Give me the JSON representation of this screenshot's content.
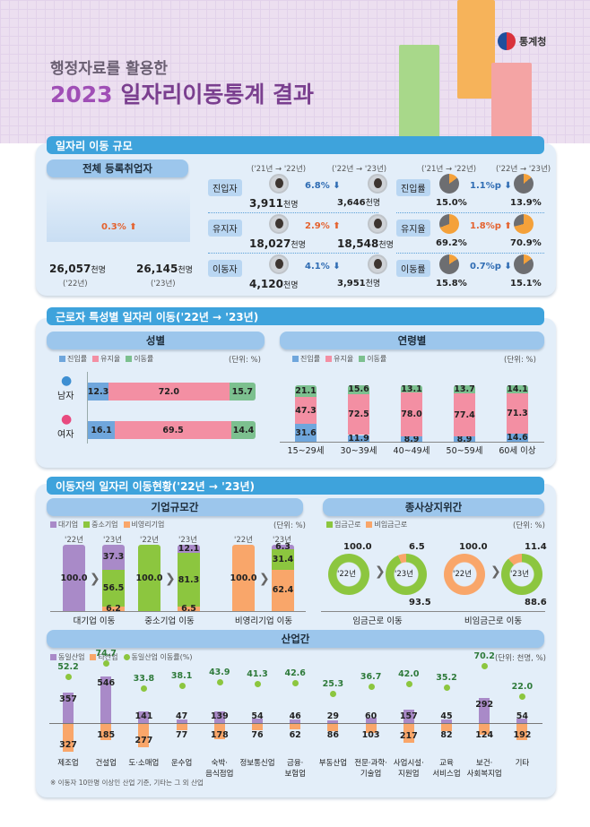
{
  "header": {
    "subtitle": "행정자료를 활용한",
    "year": "2023",
    "title": "일자리이동통계 결과",
    "org": "통계청"
  },
  "s1": {
    "title": "일자리 이동 규모",
    "pill": "전체 등록취업자",
    "total": {
      "v22": "26,057",
      "v23": "26,145",
      "unit": "천명",
      "y22": "('22년)",
      "y23": "('23년)",
      "change": "0.3%",
      "dir": "up"
    },
    "period1": "('21년 → '22년)",
    "period2": "('22년 → '23년)",
    "counts": [
      {
        "label": "진입자",
        "a": "3,911",
        "b": "3,646",
        "unit": "천명",
        "change": "6.8%",
        "dir": "down"
      },
      {
        "label": "유지자",
        "a": "18,027",
        "b": "18,548",
        "unit": "천명",
        "change": "2.9%",
        "dir": "up"
      },
      {
        "label": "이동자",
        "a": "4,120",
        "b": "3,951",
        "unit": "천명",
        "change": "4.1%",
        "dir": "down"
      }
    ],
    "rates": [
      {
        "label": "진입률",
        "a": 15.0,
        "b": 13.9,
        "change": "1.1%p",
        "dir": "down"
      },
      {
        "label": "유지율",
        "a": 69.2,
        "b": 70.9,
        "change": "1.8%p",
        "dir": "up"
      },
      {
        "label": "이동률",
        "a": 15.8,
        "b": 15.1,
        "change": "0.7%p",
        "dir": "down"
      }
    ],
    "colors": {
      "pie_fill": "#f4a13a",
      "pie_rest": "#6d6e71"
    }
  },
  "s2": {
    "title": "근로자 특성별 일자리 이동('22년 → '23년)",
    "unit": "(단위: %)",
    "legend": [
      "진입률",
      "유지율",
      "이동률"
    ],
    "colors": [
      "#6fa6dc",
      "#f38fa3",
      "#7cc08f"
    ]
  },
  "s3": {
    "title": "이동자의 일자리 이동현황('22년 → '23년)",
    "unit": "(단위: %)",
    "unit2": "(단위: 천명, %)",
    "legend_size": [
      "대기업",
      "중소기업",
      "비영리기업"
    ],
    "size_colors": [
      "#a98ac8",
      "#8cc63f",
      "#f9a66a"
    ],
    "legend_status": [
      "임금근로",
      "비임금근로"
    ],
    "status_colors": [
      "#8cc63f",
      "#f9a66a"
    ],
    "legend_ind": [
      "동일산업",
      "타산업",
      "동일산업 이동률(%)"
    ],
    "ind_colors": [
      "#a98ac8",
      "#f9a66a",
      "#8cc63f"
    ],
    "y22": "'22년",
    "y23": "'23년",
    "footnote": "※ 이동자 10만명 이상인 산업 기준, 기타는 그 외 산업"
  },
  "chart_data": [
    {
      "type": "bar",
      "title": "성별",
      "orientation": "horizontal",
      "stacked": true,
      "categories": [
        "남자",
        "여자"
      ],
      "series": [
        {
          "name": "진입률",
          "values": [
            12.3,
            16.1
          ]
        },
        {
          "name": "유지율",
          "values": [
            72.0,
            69.5
          ]
        },
        {
          "name": "이동률",
          "values": [
            15.7,
            14.4
          ]
        }
      ]
    },
    {
      "type": "bar",
      "title": "연령별",
      "stacked": true,
      "categories": [
        "15~29세",
        "30~39세",
        "40~49세",
        "50~59세",
        "60세 이상"
      ],
      "series": [
        {
          "name": "진입률",
          "values": [
            31.6,
            11.9,
            8.9,
            8.9,
            14.6
          ]
        },
        {
          "name": "유지율",
          "values": [
            47.3,
            72.5,
            78.0,
            77.4,
            71.3
          ]
        },
        {
          "name": "이동률",
          "values": [
            21.1,
            15.6,
            13.1,
            13.7,
            14.1
          ]
        }
      ]
    },
    {
      "type": "bar",
      "title": "기업규모간",
      "stacked": true,
      "categories": [
        "대기업 이동",
        "중소기업 이동",
        "비영리기업 이동"
      ],
      "from": [
        "대기업",
        "중소기업",
        "비영리기업"
      ],
      "series": [
        {
          "name": "대기업",
          "values": [
            37.3,
            12.1,
            6.3
          ]
        },
        {
          "name": "중소기업",
          "values": [
            56.5,
            81.3,
            31.4
          ]
        },
        {
          "name": "비영리기업",
          "values": [
            6.2,
            6.5,
            62.4
          ]
        }
      ],
      "base": [
        100.0,
        100.0,
        100.0
      ]
    },
    {
      "type": "pie",
      "title": "종사상지위간",
      "categories": [
        "임금근로 이동",
        "비임금근로 이동"
      ],
      "from": [
        "임금근로",
        "비임금근로"
      ],
      "base": [
        100.0,
        100.0
      ],
      "series": [
        {
          "name": "임금근로",
          "values": [
            93.5,
            88.6
          ]
        },
        {
          "name": "비임금근로",
          "values": [
            6.5,
            11.4
          ]
        }
      ]
    },
    {
      "type": "bar",
      "title": "산업간",
      "categories": [
        "제조업",
        "건설업",
        "도·소매업",
        "운수업",
        "숙박·\n음식점업",
        "정보통신업",
        "금융·\n보험업",
        "부동산업",
        "전문·과학·\n기술업",
        "사업시설·\n지원업",
        "교육\n서비스업",
        "보건·\n사회복지업",
        "기타"
      ],
      "series": [
        {
          "name": "동일산업",
          "values": [
            357,
            546,
            141,
            47,
            139,
            54,
            46,
            29,
            60,
            157,
            45,
            292,
            54
          ]
        },
        {
          "name": "타산업",
          "values": [
            327,
            185,
            277,
            77,
            178,
            76,
            62,
            86,
            103,
            217,
            82,
            124,
            192
          ]
        },
        {
          "name": "동일산업 이동률(%)",
          "values": [
            52.2,
            74.7,
            33.8,
            38.1,
            43.9,
            41.3,
            42.6,
            25.3,
            36.7,
            42.0,
            35.2,
            70.2,
            22.0
          ]
        }
      ]
    }
  ]
}
